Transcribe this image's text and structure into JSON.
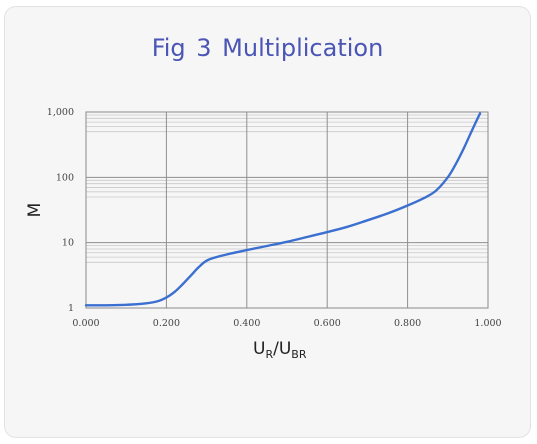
{
  "title": "Fig 3  Multiplication",
  "chart_data": {
    "type": "line",
    "title": "Fig 3  Multiplication",
    "xlabel": {
      "main": "U",
      "sub1": "R",
      "slash": "/U",
      "sub2": "BR"
    },
    "ylabel": "M",
    "x_scale": "linear",
    "y_scale": "log",
    "xlim": [
      0.0,
      1.0
    ],
    "ylim": [
      1,
      1000
    ],
    "x_ticks": [
      {
        "value": 0.0,
        "label": "0.000"
      },
      {
        "value": 0.2,
        "label": "0.200"
      },
      {
        "value": 0.4,
        "label": "0.400"
      },
      {
        "value": 0.6,
        "label": "0.600"
      },
      {
        "value": 0.8,
        "label": "0.800"
      },
      {
        "value": 1.0,
        "label": "1.000"
      }
    ],
    "y_ticks": [
      {
        "value": 1,
        "label": "1"
      },
      {
        "value": 10,
        "label": "10"
      },
      {
        "value": 100,
        "label": "100"
      },
      {
        "value": 1000,
        "label": "1,000"
      }
    ],
    "grid": true,
    "line_color": "#3b6fd0",
    "series": [
      {
        "x": [
          0.0,
          0.05,
          0.1,
          0.15,
          0.18,
          0.2,
          0.22,
          0.24,
          0.26,
          0.28,
          0.3,
          0.32,
          0.35,
          0.4,
          0.45,
          0.5,
          0.55,
          0.6,
          0.65,
          0.7,
          0.75,
          0.8,
          0.84,
          0.87,
          0.9,
          0.92,
          0.94,
          0.96,
          0.98
        ],
        "y": [
          1.1,
          1.1,
          1.12,
          1.18,
          1.28,
          1.45,
          1.75,
          2.3,
          3.1,
          4.2,
          5.3,
          5.9,
          6.6,
          7.7,
          8.9,
          10.3,
          12.2,
          14.5,
          17.5,
          22,
          28,
          37,
          48,
          62,
          100,
          160,
          280,
          520,
          950
        ]
      }
    ]
  }
}
